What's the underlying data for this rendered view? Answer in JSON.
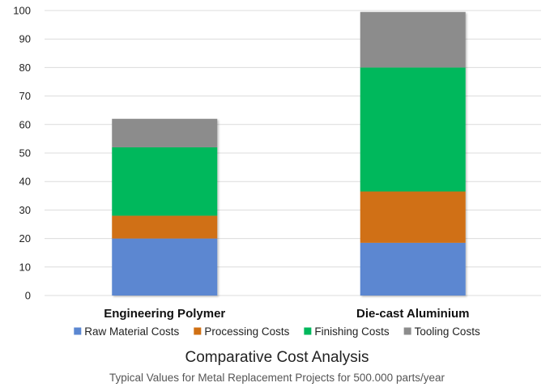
{
  "chart_data": {
    "type": "bar",
    "stacked": true,
    "title": "Comparative Cost Analysis",
    "subtitle": "Typical Values for Metal Replacement Projects for 500.000 parts/year",
    "categories": [
      "Engineering Polymer",
      "Die-cast Aluminium"
    ],
    "series": [
      {
        "name": "Raw Material Costs",
        "color": "#5b87d1",
        "values": [
          20,
          18.5
        ]
      },
      {
        "name": "Processing Costs",
        "color": "#d07014",
        "values": [
          8,
          18
        ]
      },
      {
        "name": "Finishing Costs",
        "color": "#00b85c",
        "values": [
          24,
          43.5
        ]
      },
      {
        "name": "Tooling Costs",
        "color": "#8c8c8c",
        "values": [
          10,
          19.5
        ]
      }
    ],
    "ylim": [
      0,
      100
    ],
    "yticks": [
      0,
      10,
      20,
      30,
      40,
      50,
      60,
      70,
      80,
      90,
      100
    ],
    "grid": true,
    "legend_position": "bottom"
  }
}
